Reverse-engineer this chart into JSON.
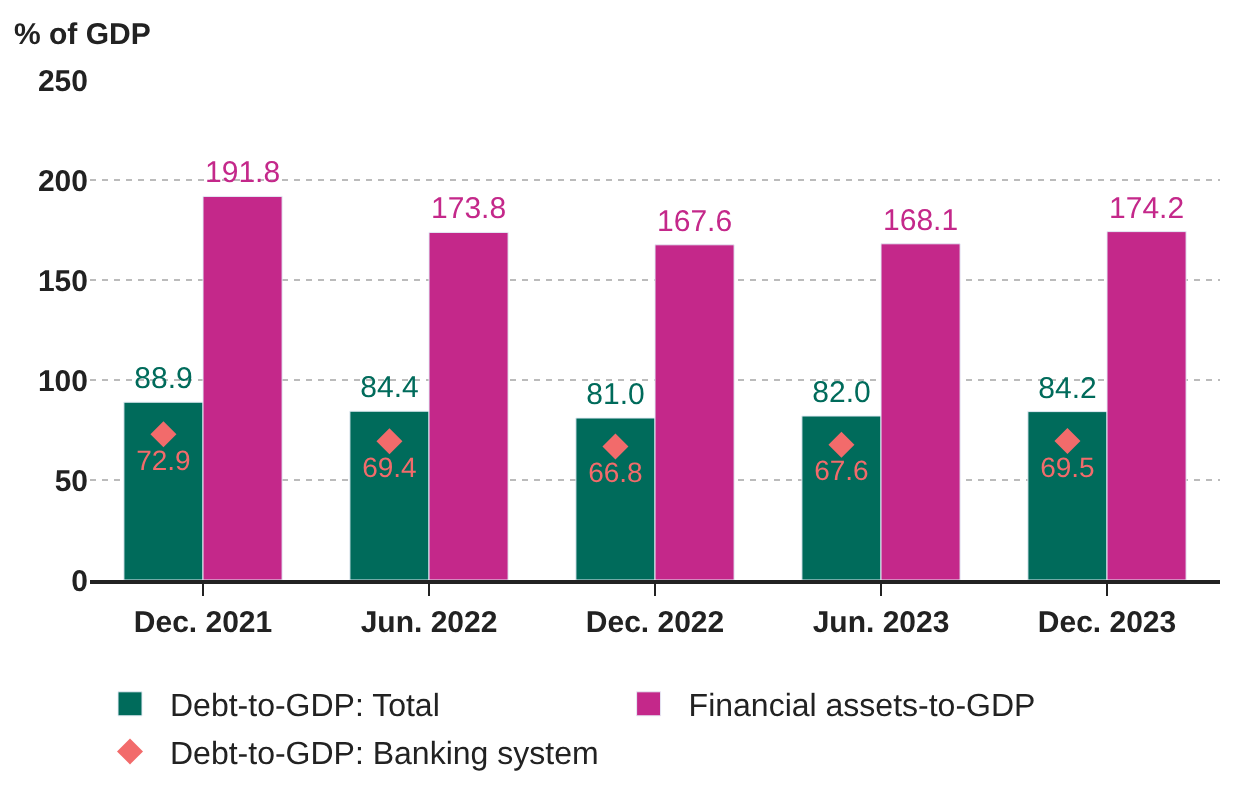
{
  "chart_data": {
    "type": "bar",
    "ylabel": "% of GDP",
    "categories": [
      "Dec. 2021",
      "Jun. 2022",
      "Dec. 2022",
      "Jun. 2023",
      "Dec. 2023"
    ],
    "series": [
      {
        "name": "Debt-to-GDP: Total",
        "color": "#006b5b",
        "values": [
          88.9,
          84.4,
          81.0,
          82.0,
          84.2
        ],
        "value_labels": [
          "88.9",
          "84.4",
          "81.0",
          "82.0",
          "84.2"
        ]
      },
      {
        "name": "Financial assets-to-GDP",
        "color": "#c4288a",
        "values": [
          191.8,
          173.8,
          167.6,
          168.1,
          174.2
        ],
        "value_labels": [
          "191.8",
          "173.8",
          "167.6",
          "168.1",
          "174.2"
        ]
      },
      {
        "name": "Debt-to-GDP: Banking system",
        "type": "scatter",
        "marker": "diamond",
        "color": "#f26b6b",
        "x": [
          "Dec. 2021",
          "Jun. 2022",
          "Dec. 2022",
          "Jun. 2023",
          "Dec. 2023"
        ],
        "values": [
          72.9,
          69.4,
          66.8,
          67.6,
          69.5
        ],
        "value_labels": [
          "72.9",
          "69.4",
          "66.8",
          "67.6",
          "69.5"
        ]
      }
    ],
    "ylim": [
      0,
      250
    ],
    "yticks": [
      0,
      50,
      100,
      150,
      200,
      250
    ],
    "grid": "y",
    "legend": "bottom"
  }
}
